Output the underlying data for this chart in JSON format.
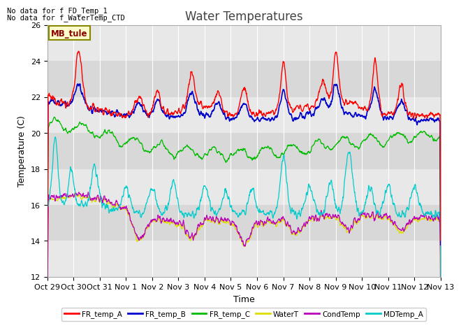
{
  "title": "Water Temperatures",
  "xlabel": "Time",
  "ylabel": "Temperature (C)",
  "ylim": [
    12,
    26
  ],
  "yticks": [
    12,
    14,
    16,
    18,
    20,
    22,
    24,
    26
  ],
  "annotations": [
    "No data for f FD_Temp_1",
    "No data for f_WaterTemp_CTD"
  ],
  "mb_tule_label": "MB_tule",
  "legend_entries": [
    "FR_temp_A",
    "FR_temp_B",
    "FR_temp_C",
    "WaterT",
    "CondTemp",
    "MDTemp_A"
  ],
  "legend_colors": [
    "#ff0000",
    "#0000cc",
    "#00bb00",
    "#dddd00",
    "#bb00bb",
    "#00cccc"
  ],
  "xtick_labels": [
    "Oct 29",
    "Oct 30",
    "Oct 31",
    "Nov 1",
    "Nov 2",
    "Nov 3",
    "Nov 4",
    "Nov 5",
    "Nov 6",
    "Nov 7",
    "Nov 8",
    "Nov 9",
    "Nov 10",
    "Nov 11",
    "Nov 12",
    "Nov 13"
  ],
  "background_color": "#d8d8d8",
  "stripe_color": "#e8e8e8",
  "title_fontsize": 12,
  "label_fontsize": 9,
  "tick_fontsize": 8
}
